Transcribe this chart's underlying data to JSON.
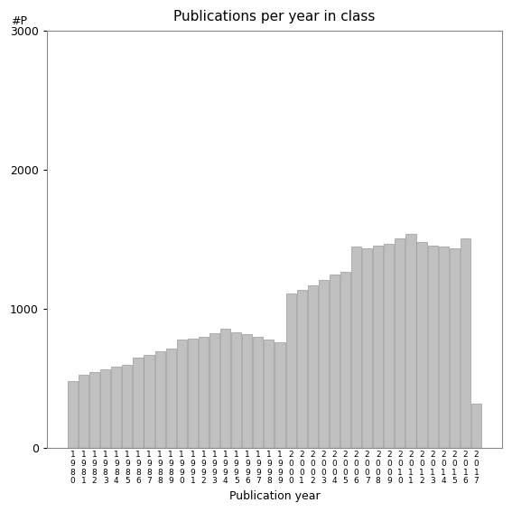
{
  "title": "Publications per year in class",
  "xlabel": "Publication year",
  "ylabel": "#P",
  "ylim": [
    0,
    3000
  ],
  "yticks": [
    0,
    1000,
    2000,
    3000
  ],
  "bar_color": "#c0c0c0",
  "bar_edgecolor": "#888888",
  "background_color": "#ffffff",
  "years": [
    1980,
    1981,
    1982,
    1983,
    1984,
    1985,
    1986,
    1987,
    1988,
    1989,
    1990,
    1991,
    1992,
    1993,
    1994,
    1995,
    1996,
    1997,
    1998,
    1999,
    2000,
    2001,
    2002,
    2003,
    2004,
    2005,
    2006,
    2007,
    2008,
    2009,
    2010,
    2011,
    2012,
    2013,
    2014,
    2015,
    2016,
    2017
  ],
  "values": [
    480,
    530,
    545,
    565,
    585,
    600,
    650,
    670,
    700,
    715,
    780,
    790,
    800,
    830,
    860,
    835,
    820,
    800,
    780,
    760,
    1110,
    1140,
    1170,
    1210,
    1250,
    1270,
    1450,
    1440,
    1460,
    1470,
    1510,
    1540,
    1480,
    1460,
    1450,
    1440,
    1510,
    320
  ]
}
